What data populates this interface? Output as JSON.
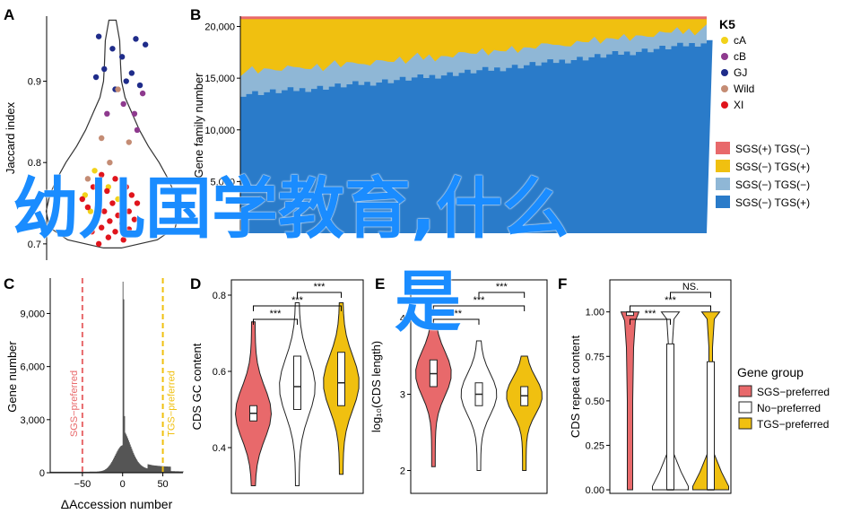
{
  "panels": {
    "A": "A",
    "B": "B",
    "C": "C",
    "D": "D",
    "E": "E",
    "F": "F"
  },
  "overlay_text": {
    "line1": "幼儿国学教育,什么",
    "line2": "是"
  },
  "colors": {
    "cA": "#f2d21a",
    "cB": "#8e3a8e",
    "GJ": "#1f2c8a",
    "Wild": "#c48c74",
    "XI": "#e0141c",
    "sgs_tgs_minus": "#e8696b",
    "sgs_minus_tgs": "#f0c010",
    "sgs_minus_tgs_minus": "#8fb7d6",
    "sgs_minus_tgs_plus": "#2a7bc9",
    "sgs_pref": "#e8696b",
    "no_pref": "#ffffff",
    "tgs_pref": "#f0c010",
    "overlay": "#1a8cff"
  },
  "chart_data": [
    {
      "panel": "A",
      "type": "scatter",
      "ylabel": "Jaccard index",
      "yticks": [
        "0.9",
        "0.8",
        "0.7"
      ],
      "ylim": [
        0.68,
        0.98
      ],
      "groups_legend": [
        "cA",
        "cB",
        "GJ",
        "Wild",
        "XI"
      ],
      "points": [
        {
          "x": 0.38,
          "y": 0.955,
          "g": "GJ"
        },
        {
          "x": 0.65,
          "y": 0.952,
          "g": "GJ"
        },
        {
          "x": 0.48,
          "y": 0.94,
          "g": "GJ"
        },
        {
          "x": 0.72,
          "y": 0.945,
          "g": "GJ"
        },
        {
          "x": 0.55,
          "y": 0.93,
          "g": "GJ"
        },
        {
          "x": 0.42,
          "y": 0.915,
          "g": "GJ"
        },
        {
          "x": 0.36,
          "y": 0.905,
          "g": "GJ"
        },
        {
          "x": 0.62,
          "y": 0.91,
          "g": "GJ"
        },
        {
          "x": 0.58,
          "y": 0.9,
          "g": "GJ"
        },
        {
          "x": 0.68,
          "y": 0.895,
          "g": "GJ"
        },
        {
          "x": 0.5,
          "y": 0.89,
          "g": "GJ"
        },
        {
          "x": 0.7,
          "y": 0.885,
          "g": "cB"
        },
        {
          "x": 0.56,
          "y": 0.872,
          "g": "cB"
        },
        {
          "x": 0.64,
          "y": 0.86,
          "g": "cB"
        },
        {
          "x": 0.44,
          "y": 0.86,
          "g": "cB"
        },
        {
          "x": 0.66,
          "y": 0.84,
          "g": "cB"
        },
        {
          "x": 0.4,
          "y": 0.83,
          "g": "Wild"
        },
        {
          "x": 0.52,
          "y": 0.89,
          "g": "Wild"
        },
        {
          "x": 0.6,
          "y": 0.825,
          "g": "Wild"
        },
        {
          "x": 0.46,
          "y": 0.8,
          "g": "Wild"
        },
        {
          "x": 0.3,
          "y": 0.78,
          "g": "Wild"
        },
        {
          "x": 0.35,
          "y": 0.79,
          "g": "cA"
        },
        {
          "x": 0.45,
          "y": 0.77,
          "g": "cA"
        },
        {
          "x": 0.28,
          "y": 0.76,
          "g": "cA"
        },
        {
          "x": 0.52,
          "y": 0.755,
          "g": "cA"
        },
        {
          "x": 0.32,
          "y": 0.74,
          "g": "cA"
        },
        {
          "x": 0.4,
          "y": 0.785,
          "g": "XI"
        },
        {
          "x": 0.5,
          "y": 0.78,
          "g": "XI"
        },
        {
          "x": 0.58,
          "y": 0.77,
          "g": "XI"
        },
        {
          "x": 0.34,
          "y": 0.77,
          "g": "XI"
        },
        {
          "x": 0.44,
          "y": 0.765,
          "g": "XI"
        },
        {
          "x": 0.62,
          "y": 0.76,
          "g": "XI"
        },
        {
          "x": 0.26,
          "y": 0.755,
          "g": "XI"
        },
        {
          "x": 0.38,
          "y": 0.755,
          "g": "XI"
        },
        {
          "x": 0.48,
          "y": 0.75,
          "g": "XI"
        },
        {
          "x": 0.56,
          "y": 0.745,
          "g": "XI"
        },
        {
          "x": 0.66,
          "y": 0.75,
          "g": "XI"
        },
        {
          "x": 0.3,
          "y": 0.745,
          "g": "XI"
        },
        {
          "x": 0.42,
          "y": 0.74,
          "g": "XI"
        },
        {
          "x": 0.52,
          "y": 0.735,
          "g": "XI"
        },
        {
          "x": 0.6,
          "y": 0.74,
          "g": "XI"
        },
        {
          "x": 0.36,
          "y": 0.73,
          "g": "XI"
        },
        {
          "x": 0.46,
          "y": 0.728,
          "g": "XI"
        },
        {
          "x": 0.55,
          "y": 0.725,
          "g": "XI"
        },
        {
          "x": 0.64,
          "y": 0.73,
          "g": "XI"
        },
        {
          "x": 0.4,
          "y": 0.72,
          "g": "XI"
        },
        {
          "x": 0.5,
          "y": 0.715,
          "g": "XI"
        },
        {
          "x": 0.6,
          "y": 0.718,
          "g": "XI"
        },
        {
          "x": 0.33,
          "y": 0.715,
          "g": "XI"
        },
        {
          "x": 0.45,
          "y": 0.708,
          "g": "XI"
        },
        {
          "x": 0.56,
          "y": 0.705,
          "g": "XI"
        },
        {
          "x": 0.38,
          "y": 0.7,
          "g": "XI"
        }
      ]
    },
    {
      "panel": "B",
      "type": "area",
      "ylabel": "Gene family number",
      "yticks": [
        "20,000",
        "15,000",
        "10,000",
        "5,000"
      ],
      "ylim": [
        0,
        21000
      ],
      "legend_title": "K5",
      "legend": [
        "SGS(+) TGS(−)",
        "SGS(−) TGS(+)",
        "SGS(−) TGS(−)",
        "SGS(−) TGS(+)"
      ],
      "n_samples": 80,
      "core_start": 13500,
      "core_end": 18500,
      "light_start": 2200,
      "light_end": 1300,
      "total": 20800
    },
    {
      "panel": "C",
      "type": "area",
      "xlabel": "ΔAccession number",
      "ylabel": "Gene number",
      "yticks": [
        "9,000",
        "6,000",
        "3,000",
        "0"
      ],
      "xticks": [
        "−50",
        "0",
        "50"
      ],
      "xlim": [
        -90,
        75
      ],
      "ylim": [
        0,
        11000
      ],
      "vlines": [
        {
          "x": -50,
          "label": "SGS−preferred"
        },
        {
          "x": 50,
          "label": "TGS−preferred"
        }
      ]
    },
    {
      "panel": "D",
      "type": "violin",
      "ylabel": "CDS GC content",
      "yticks": [
        "0.8",
        "0.6",
        "0.4"
      ],
      "ylim": [
        0.28,
        0.84
      ],
      "groups": [
        {
          "name": "SGS−preferred",
          "median": 0.49,
          "q1": 0.47,
          "q3": 0.51,
          "min": 0.3,
          "max": 0.73
        },
        {
          "name": "No−preferred",
          "median": 0.56,
          "q1": 0.5,
          "q3": 0.64,
          "min": 0.3,
          "max": 0.78
        },
        {
          "name": "TGS−preferred",
          "median": 0.57,
          "q1": 0.51,
          "q3": 0.65,
          "min": 0.33,
          "max": 0.78
        }
      ],
      "brackets": [
        {
          "a": 1,
          "b": 2,
          "label": "***"
        },
        {
          "a": 0,
          "b": 2,
          "label": "***"
        },
        {
          "a": 0,
          "b": 1,
          "label": "***"
        }
      ]
    },
    {
      "panel": "E",
      "type": "violin",
      "ylabel": "log₁₀(CDS length)",
      "yticks": [
        "4",
        "3",
        "2"
      ],
      "ylim": [
        1.7,
        4.5
      ],
      "groups": [
        {
          "name": "SGS−preferred",
          "median": 3.27,
          "q1": 3.1,
          "q3": 3.45,
          "min": 2.05,
          "max": 3.9
        },
        {
          "name": "No−preferred",
          "median": 3.0,
          "q1": 2.85,
          "q3": 3.15,
          "min": 2.0,
          "max": 3.7
        },
        {
          "name": "TGS−preferred",
          "median": 2.98,
          "q1": 2.85,
          "q3": 3.1,
          "min": 2.0,
          "max": 3.5
        }
      ],
      "brackets": [
        {
          "a": 1,
          "b": 2,
          "label": "***"
        },
        {
          "a": 0,
          "b": 2,
          "label": "***"
        },
        {
          "a": 0,
          "b": 1,
          "label": "***"
        }
      ]
    },
    {
      "panel": "F",
      "type": "violin",
      "ylabel": "CDS repeat content",
      "yticks": [
        "1.00",
        "0.75",
        "0.50",
        "0.25",
        "0.00"
      ],
      "ylim": [
        -0.02,
        1.18
      ],
      "legend_title": "Gene group",
      "legend": [
        "SGS−preferred",
        "No−preferred",
        "TGS−preferred"
      ],
      "groups": [
        {
          "name": "SGS−preferred",
          "median": 1.0,
          "q1": 0.98,
          "q3": 1.0,
          "min": 0.0,
          "max": 1.0
        },
        {
          "name": "No−preferred",
          "median": 0.0,
          "q1": 0.0,
          "q3": 0.82,
          "min": 0.0,
          "max": 1.0
        },
        {
          "name": "TGS−preferred",
          "median": 0.0,
          "q1": 0.0,
          "q3": 0.72,
          "min": 0.0,
          "max": 1.0
        }
      ],
      "brackets": [
        {
          "a": 1,
          "b": 2,
          "label": "NS."
        },
        {
          "a": 0,
          "b": 2,
          "label": "***"
        },
        {
          "a": 0,
          "b": 1,
          "label": "***"
        }
      ]
    }
  ]
}
